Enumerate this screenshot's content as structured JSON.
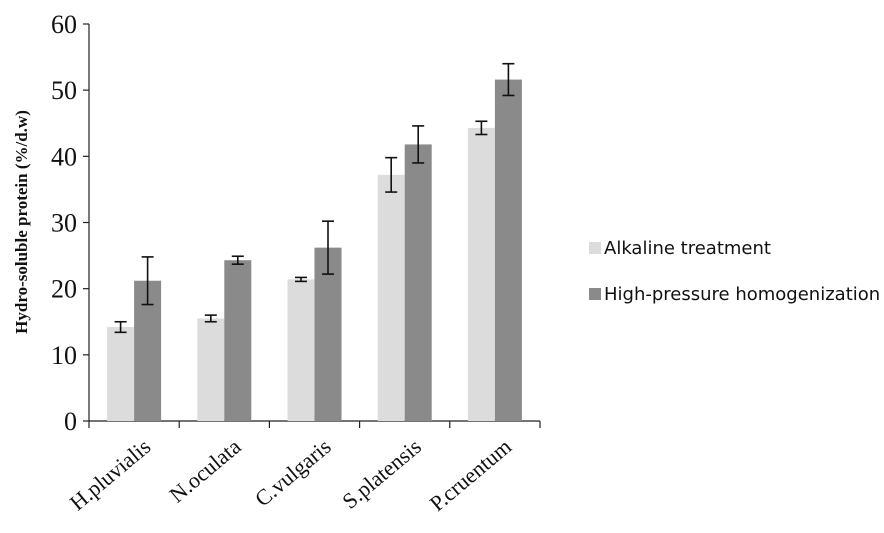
{
  "chart_data": {
    "type": "bar",
    "title": "",
    "xlabel": "",
    "ylabel": "Hydro-soluble protein (%/d.w)",
    "ylim": [
      0,
      60
    ],
    "yticks": [
      "0",
      "10",
      "20",
      "30",
      "40",
      "50",
      "60"
    ],
    "categories": [
      "H.pluvialis",
      "N.oculata",
      "C.vulgaris",
      "S.platensis",
      "P.cruentum"
    ],
    "series": [
      {
        "name": "Alkaline treatment",
        "color": "#dcdcdc",
        "values": [
          14.2,
          15.5,
          21.4,
          37.2,
          44.3
        ],
        "errors": [
          0.8,
          0.5,
          0.3,
          2.6,
          1.0
        ]
      },
      {
        "name": "High-pressure homogenization",
        "color": "#8a8a8a",
        "values": [
          21.2,
          24.3,
          26.2,
          41.8,
          51.6
        ],
        "errors": [
          3.6,
          0.6,
          4.0,
          2.8,
          2.4
        ]
      }
    ],
    "grid": false,
    "legend_position": "right"
  }
}
